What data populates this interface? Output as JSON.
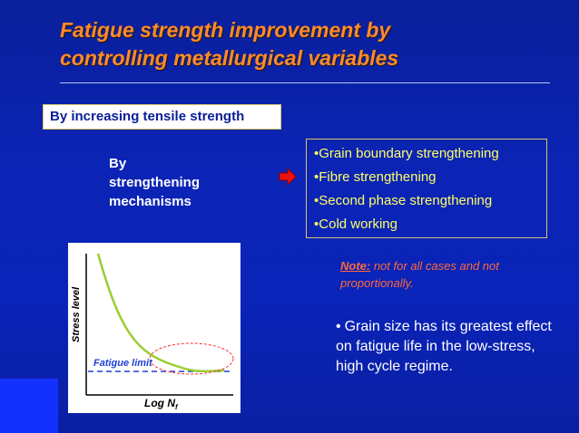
{
  "slide": {
    "title_line1": "Fatigue strength improvement by",
    "title_line2": "controlling metallurgical variables",
    "boxed_heading": "By increasing tensile strength",
    "mechanisms_label": "By\nstrengthening\nmechanisms",
    "list_items": [
      "Grain boundary strengthening",
      "Fibre strengthening",
      "Second phase strengthening",
      "Cold working"
    ],
    "note_lead": "Note:",
    "note_text": " not for all cases and not proportionally.",
    "grain_bullet": "•",
    "grain_text": "Grain size has its greatest effect on fatigue life in the low-stress, high cycle regime."
  },
  "plot": {
    "y_label": "Stress level",
    "x_label_main": "Log N",
    "x_label_sub": "f",
    "fatigue_limit_label": "Fatigue limit"
  },
  "colors": {
    "title": "#ff8a2a",
    "list_text": "#ffff66",
    "note": "#ff6a3a",
    "curve": "#9acd32",
    "fatigue_line": "#1f3fd8",
    "ellipse": "#ff3333"
  },
  "icons": {
    "arrow": "red-right-arrow"
  }
}
